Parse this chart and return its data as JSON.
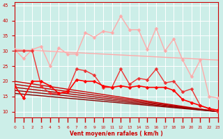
{
  "xlabel": "Vent moyen/en rafales ( km/h )",
  "xlim": [
    0,
    23
  ],
  "ylim": [
    8,
    46
  ],
  "yticks": [
    10,
    15,
    20,
    25,
    30,
    35,
    40,
    45
  ],
  "xticks": [
    0,
    1,
    2,
    3,
    4,
    5,
    6,
    7,
    8,
    9,
    10,
    11,
    12,
    13,
    14,
    15,
    16,
    17,
    18,
    19,
    20,
    21,
    22,
    23
  ],
  "bg_color": "#cceee8",
  "grid_color": "#ffffff",
  "series": [
    {
      "x": [
        0,
        1,
        2,
        3,
        4,
        5,
        6,
        7,
        8,
        9,
        10,
        11,
        12,
        13,
        14,
        15,
        16,
        17,
        18,
        19,
        20,
        21,
        22,
        23
      ],
      "y": [
        30.5,
        27.5,
        30.5,
        31.5,
        25,
        31,
        29,
        29,
        36,
        34.5,
        36.5,
        36,
        41.5,
        37,
        37,
        30.5,
        37.5,
        30,
        34,
        27,
        21.5,
        27,
        15,
        14.5
      ],
      "color": "#ffaaaa",
      "lw": 1.0,
      "marker": "D",
      "ms": 2.5
    },
    {
      "x": [
        0,
        23
      ],
      "y": [
        30.5,
        27
      ],
      "color": "#ffaaaa",
      "lw": 1.0,
      "marker": null,
      "ms": 0
    },
    {
      "x": [
        0,
        1,
        2,
        3,
        4,
        5,
        6,
        7,
        8,
        9,
        10,
        11,
        12,
        13,
        14,
        15,
        16,
        17,
        18,
        19,
        20,
        21,
        22,
        23
      ],
      "y": [
        30,
        30,
        30,
        18.5,
        16,
        16,
        17,
        24,
        23.5,
        22,
        18,
        18,
        24,
        19,
        21,
        20.5,
        24,
        19.5,
        20,
        16.5,
        17.5,
        12,
        11,
        10
      ],
      "color": "#ee3333",
      "lw": 1.0,
      "marker": "D",
      "ms": 2.5
    },
    {
      "x": [
        0,
        23
      ],
      "y": [
        20,
        10
      ],
      "color": "#cc0000",
      "lw": 1.0,
      "marker": null,
      "ms": 0
    },
    {
      "x": [
        0,
        23
      ],
      "y": [
        19,
        10
      ],
      "color": "#bb0000",
      "lw": 1.0,
      "marker": null,
      "ms": 0
    },
    {
      "x": [
        0,
        23
      ],
      "y": [
        18,
        10
      ],
      "color": "#aa0000",
      "lw": 1.0,
      "marker": null,
      "ms": 0
    },
    {
      "x": [
        0,
        23
      ],
      "y": [
        17,
        10
      ],
      "color": "#990000",
      "lw": 1.0,
      "marker": null,
      "ms": 0
    },
    {
      "x": [
        0,
        23
      ],
      "y": [
        16,
        10
      ],
      "color": "#880000",
      "lw": 1.0,
      "marker": null,
      "ms": 0
    },
    {
      "x": [
        0,
        1,
        2,
        3,
        4,
        5,
        6,
        7,
        8,
        9,
        10,
        11,
        12,
        13,
        14,
        15,
        16,
        17,
        18,
        19,
        20,
        21,
        22,
        23
      ],
      "y": [
        18.5,
        14.5,
        20,
        20,
        18.5,
        16,
        16.5,
        20.5,
        20,
        20,
        18.5,
        18,
        18.5,
        18,
        18.5,
        18,
        18,
        18,
        17,
        14,
        13,
        12,
        11,
        10.5
      ],
      "color": "#ff0000",
      "lw": 1.2,
      "marker": "D",
      "ms": 2.5
    }
  ]
}
